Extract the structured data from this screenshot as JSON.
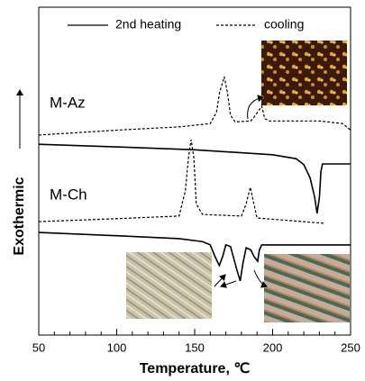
{
  "chart_data": {
    "type": "line",
    "xlabel": "Temperature, ℃",
    "ylabel": "Exothermic",
    "annotations": [
      "M-Az",
      "M-Ch"
    ],
    "legend": [
      {
        "name": "2nd heating",
        "dashed": false
      },
      {
        "name": "cooling",
        "dashed": true
      }
    ],
    "xlim": [
      50,
      250
    ],
    "xticks": [
      50,
      100,
      150,
      200,
      250
    ],
    "xminorticks": [
      60,
      70,
      80,
      90,
      110,
      120,
      130,
      140,
      160,
      170,
      180,
      190,
      210,
      220,
      230,
      240
    ],
    "ylim": [
      0,
      100
    ],
    "series": [
      {
        "color": "#000000",
        "dashed": true,
        "x": [
          50,
          100,
          140,
          160,
          164,
          166,
          169,
          171,
          173,
          176,
          186,
          189,
          193,
          195,
          198,
          230,
          245,
          250
        ],
        "values": [
          61,
          62.5,
          63.5,
          64.5,
          68,
          74,
          78.8,
          74,
          67,
          65,
          65.3,
          67,
          69.8,
          66,
          65.3,
          65.3,
          64.5,
          62.5
        ]
      },
      {
        "color": "#000000",
        "dashed": false,
        "x": [
          50,
          100,
          150,
          200,
          215,
          220,
          224,
          227,
          228.5,
          230,
          231,
          232,
          250
        ],
        "values": [
          58.2,
          57.4,
          56.5,
          55,
          53.8,
          52,
          48,
          42,
          37.1,
          42,
          50,
          52.2,
          52.2
        ]
      },
      {
        "color": "#000000",
        "dashed": true,
        "x": [
          50,
          100,
          140,
          144,
          146,
          147.7,
          149.5,
          151,
          155,
          180,
          183,
          185.7,
          188,
          190,
          233
        ],
        "values": [
          34.6,
          35.5,
          36.3,
          44,
          54,
          59.6,
          54,
          40,
          36.8,
          36.3,
          40,
          45.1,
          40,
          35.7,
          34.1
        ]
      },
      {
        "color": "#000000",
        "dashed": false,
        "x": [
          50,
          100,
          140,
          155,
          160,
          163,
          165.8,
          168,
          170,
          173,
          177,
          179.2,
          181,
          183,
          186,
          188,
          190.4,
          191.5,
          193,
          250
        ],
        "values": [
          31.3,
          30.3,
          29.4,
          28.5,
          27.5,
          24,
          21.2,
          24,
          27.5,
          27,
          20,
          16.5,
          22,
          26.6,
          26,
          24,
          22.5,
          26,
          27.5,
          27.5
        ]
      }
    ]
  }
}
